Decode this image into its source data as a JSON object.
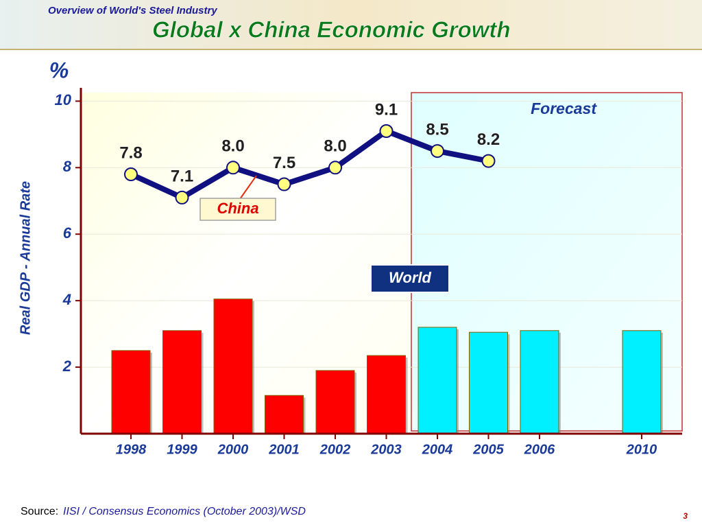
{
  "header": {
    "subtitle": "Overview of World's Steel Industry",
    "title": "Global x China Economic Growth"
  },
  "chart_data": {
    "type": "bar_line",
    "y_unit": "%",
    "y_label": "Real GDP - Annual Rate",
    "categories": [
      "1998",
      "1999",
      "2000",
      "2001",
      "2002",
      "2003",
      "2004",
      "2005",
      "2006",
      null,
      "2010"
    ],
    "ylim": [
      0,
      10.4
    ],
    "yticks": [
      2,
      4,
      6,
      8,
      10
    ],
    "series": [
      {
        "name": "World",
        "type": "bar",
        "colors": [
          "#ff0000",
          "#ff0000",
          "#ff0000",
          "#ff0000",
          "#ff0000",
          "#ff0000",
          "#00f0ff",
          "#00f0ff",
          "#00f0ff",
          null,
          "#00f0ff"
        ],
        "values": [
          2.5,
          3.1,
          4.05,
          1.15,
          1.9,
          2.35,
          3.2,
          3.05,
          3.1,
          null,
          3.1
        ]
      },
      {
        "name": "China",
        "type": "line",
        "color": "#101080",
        "values": [
          7.8,
          7.1,
          8.0,
          7.5,
          8.0,
          9.1,
          8.5,
          8.2,
          null,
          null,
          null
        ],
        "value_labels": [
          "7.8",
          "7.1",
          "8.0",
          "7.5",
          "8.0",
          "9.1",
          "8.5",
          "8.2",
          null,
          null,
          null
        ]
      }
    ],
    "annotations": [
      "Forecast"
    ]
  },
  "footer": {
    "source_label": "Source:",
    "source": "IISI / Consensus Economics (October 2003)/WSD",
    "page_number": 3
  }
}
